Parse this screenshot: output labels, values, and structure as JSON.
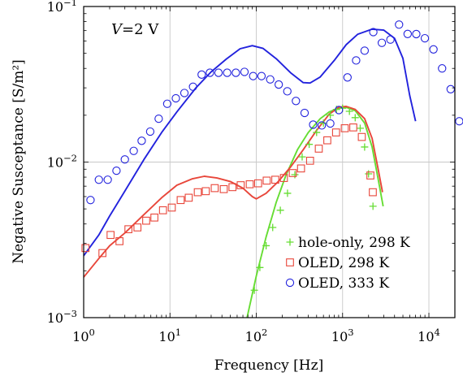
{
  "chart_data": {
    "type": "scatter",
    "annotation": {
      "var": "V",
      "rest": "=2 V"
    },
    "xlabel": "Frequency [Hz]",
    "ylabel": "Negative Susceptance [S/m²]",
    "xscale": "log",
    "yscale": "log",
    "xlim": [
      1,
      20000
    ],
    "ylim": [
      0.001,
      0.1
    ],
    "grid": true,
    "legend_position": "bottom-right",
    "x_ticks": [
      {
        "value": 1,
        "base": "10",
        "exp": "0"
      },
      {
        "value": 10,
        "base": "10",
        "exp": "1"
      },
      {
        "value": 100,
        "base": "10",
        "exp": "2"
      },
      {
        "value": 1000,
        "base": "10",
        "exp": "3"
      },
      {
        "value": 10000,
        "base": "10",
        "exp": "4"
      }
    ],
    "y_ticks": [
      {
        "value": 0.001,
        "base": "10",
        "exp": "−3"
      },
      {
        "value": 0.01,
        "base": "10",
        "exp": "−2"
      },
      {
        "value": 0.1,
        "base": "10",
        "exp": "−1"
      }
    ],
    "series": [
      {
        "name": "hole-only, 298 K",
        "color": "#66dd33",
        "marker": "plus",
        "points": [
          [
            95,
            0.0015
          ],
          [
            110,
            0.0021
          ],
          [
            130,
            0.0029
          ],
          [
            155,
            0.0038
          ],
          [
            190,
            0.0049
          ],
          [
            230,
            0.0063
          ],
          [
            280,
            0.0083
          ],
          [
            340,
            0.0108
          ],
          [
            410,
            0.013
          ],
          [
            500,
            0.0155
          ],
          [
            600,
            0.0178
          ],
          [
            720,
            0.02
          ],
          [
            850,
            0.0218
          ],
          [
            1000,
            0.0222
          ],
          [
            1200,
            0.0212
          ],
          [
            1400,
            0.0193
          ],
          [
            1600,
            0.0165
          ],
          [
            1800,
            0.0125
          ],
          [
            2000,
            0.0084
          ],
          [
            2250,
            0.0052
          ]
        ],
        "fit": [
          [
            75,
            0.0009
          ],
          [
            100,
            0.00185
          ],
          [
            130,
            0.0033
          ],
          [
            170,
            0.0055
          ],
          [
            220,
            0.0082
          ],
          [
            300,
            0.012
          ],
          [
            400,
            0.0155
          ],
          [
            550,
            0.019
          ],
          [
            700,
            0.021
          ],
          [
            900,
            0.0222
          ],
          [
            1100,
            0.0225
          ],
          [
            1400,
            0.0214
          ],
          [
            1800,
            0.0178
          ],
          [
            2200,
            0.0125
          ],
          [
            2600,
            0.0076
          ],
          [
            2950,
            0.0052
          ]
        ]
      },
      {
        "name": "OLED, 298 K",
        "color": "#e8463a",
        "marker": "square",
        "points": [
          [
            1.05,
            0.0028
          ],
          [
            1.65,
            0.0026
          ],
          [
            2.05,
            0.0034
          ],
          [
            2.6,
            0.0031
          ],
          [
            3.3,
            0.0037
          ],
          [
            4.2,
            0.0038
          ],
          [
            5.3,
            0.0042
          ],
          [
            6.6,
            0.0044
          ],
          [
            8.3,
            0.0049
          ],
          [
            10.5,
            0.0051
          ],
          [
            13.3,
            0.0057
          ],
          [
            16.5,
            0.0059
          ],
          [
            21,
            0.0064
          ],
          [
            26,
            0.0065
          ],
          [
            33,
            0.0068
          ],
          [
            42,
            0.0067
          ],
          [
            53,
            0.0069
          ],
          [
            66,
            0.0071
          ],
          [
            84,
            0.0072
          ],
          [
            105,
            0.0073
          ],
          [
            132,
            0.0076
          ],
          [
            166,
            0.0077
          ],
          [
            209,
            0.0079
          ],
          [
            265,
            0.0085
          ],
          [
            330,
            0.0091
          ],
          [
            420,
            0.0102
          ],
          [
            530,
            0.0122
          ],
          [
            665,
            0.0138
          ],
          [
            840,
            0.0155
          ],
          [
            1060,
            0.0165
          ],
          [
            1330,
            0.0167
          ],
          [
            1670,
            0.0145
          ],
          [
            2100,
            0.0082
          ],
          [
            2240,
            0.0064
          ]
        ],
        "fit": [
          [
            1,
            0.00182
          ],
          [
            1.5,
            0.0024
          ],
          [
            2,
            0.0029
          ],
          [
            3,
            0.0035
          ],
          [
            5,
            0.0046
          ],
          [
            8,
            0.0059
          ],
          [
            12,
            0.0071
          ],
          [
            18,
            0.0078
          ],
          [
            25,
            0.0081
          ],
          [
            35,
            0.0079
          ],
          [
            50,
            0.0075
          ],
          [
            70,
            0.0068
          ],
          [
            90,
            0.006
          ],
          [
            100,
            0.0058
          ],
          [
            130,
            0.0063
          ],
          [
            180,
            0.0075
          ],
          [
            250,
            0.0093
          ],
          [
            350,
            0.012
          ],
          [
            500,
            0.016
          ],
          [
            700,
            0.0203
          ],
          [
            900,
            0.0225
          ],
          [
            1100,
            0.0228
          ],
          [
            1400,
            0.0218
          ],
          [
            1800,
            0.019
          ],
          [
            2200,
            0.0142
          ],
          [
            2600,
            0.0088
          ],
          [
            2900,
            0.0064
          ]
        ]
      },
      {
        "name": "OLED, 333 K",
        "color": "#2222dd",
        "marker": "circle",
        "points": [
          [
            1.2,
            0.0057
          ],
          [
            1.5,
            0.0077
          ],
          [
            1.9,
            0.0077
          ],
          [
            2.4,
            0.0088
          ],
          [
            3.0,
            0.0104
          ],
          [
            3.8,
            0.0118
          ],
          [
            4.7,
            0.0137
          ],
          [
            5.9,
            0.0157
          ],
          [
            7.4,
            0.019
          ],
          [
            9.3,
            0.0237
          ],
          [
            11.7,
            0.0257
          ],
          [
            14.7,
            0.0278
          ],
          [
            18.5,
            0.0305
          ],
          [
            23.3,
            0.0365
          ],
          [
            29,
            0.0375
          ],
          [
            36.5,
            0.0375
          ],
          [
            46,
            0.0375
          ],
          [
            58,
            0.0375
          ],
          [
            73,
            0.038
          ],
          [
            92,
            0.0357
          ],
          [
            115,
            0.0357
          ],
          [
            145,
            0.034
          ],
          [
            182,
            0.0315
          ],
          [
            229,
            0.0285
          ],
          [
            288,
            0.0247
          ],
          [
            363,
            0.0207
          ],
          [
            456,
            0.0174
          ],
          [
            574,
            0.0172
          ],
          [
            720,
            0.0177
          ],
          [
            906,
            0.0216
          ],
          [
            1140,
            0.035
          ],
          [
            1435,
            0.045
          ],
          [
            1800,
            0.052
          ],
          [
            2270,
            0.0685
          ],
          [
            2850,
            0.0584
          ],
          [
            3580,
            0.0613
          ],
          [
            4510,
            0.0765
          ],
          [
            5670,
            0.0666
          ],
          [
            7140,
            0.0665
          ],
          [
            8980,
            0.0625
          ],
          [
            11300,
            0.053
          ],
          [
            14220,
            0.04
          ],
          [
            17880,
            0.0294
          ],
          [
            22500,
            0.0183
          ]
        ],
        "fit": [
          [
            1,
            0.0025
          ],
          [
            1.5,
            0.0034
          ],
          [
            2,
            0.0045
          ],
          [
            3,
            0.0065
          ],
          [
            5,
            0.0104
          ],
          [
            8,
            0.0155
          ],
          [
            12,
            0.021
          ],
          [
            20,
            0.03
          ],
          [
            30,
            0.038
          ],
          [
            45,
            0.046
          ],
          [
            65,
            0.0535
          ],
          [
            90,
            0.056
          ],
          [
            120,
            0.0538
          ],
          [
            170,
            0.0462
          ],
          [
            250,
            0.0375
          ],
          [
            350,
            0.0324
          ],
          [
            420,
            0.0322
          ],
          [
            550,
            0.0352
          ],
          [
            800,
            0.045
          ],
          [
            1100,
            0.0568
          ],
          [
            1500,
            0.0664
          ],
          [
            2200,
            0.0715
          ],
          [
            3000,
            0.0705
          ],
          [
            4000,
            0.0625
          ],
          [
            5000,
            0.0465
          ],
          [
            6000,
            0.0268
          ],
          [
            7000,
            0.0183
          ]
        ]
      }
    ]
  }
}
